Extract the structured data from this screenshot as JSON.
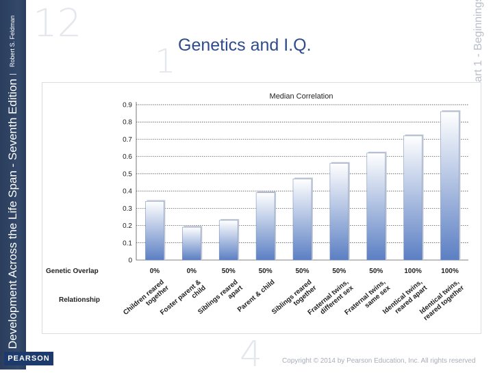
{
  "slide": {
    "title": "Genetics and I.Q.",
    "side_title": "Development Across the Life Span - Seventh Edition",
    "separator": "|",
    "author": "Robert S. Feldman",
    "part_label": "art 1 - Beginnings",
    "publisher": "PEARSON",
    "copyright": "Copyright © 2014 by Pearson Education, Inc. All rights reserved",
    "watermark_numbers": [
      "12",
      "1",
      "4"
    ]
  },
  "chart_data": {
    "type": "bar",
    "title": "Median Correlation",
    "ylim": [
      0,
      0.9
    ],
    "yticks": [
      "0",
      "0.1",
      "0.2",
      "0.3",
      "0.4",
      "0.5",
      "0.6",
      "0.7",
      "0.8",
      "0.9"
    ],
    "row_labels": {
      "overlap": "Genetic Overlap",
      "relationship": "Relationship"
    },
    "categories": [
      {
        "line1": "Children reared",
        "line2": "together",
        "overlap": "0%",
        "value": 0.34
      },
      {
        "line1": "Foster parent &",
        "line2": "child",
        "overlap": "0%",
        "value": 0.19
      },
      {
        "line1": "Siblings reared",
        "line2": "apart",
        "overlap": "50%",
        "value": 0.23
      },
      {
        "line1": "Parent & child",
        "line2": "",
        "overlap": "50%",
        "value": 0.39
      },
      {
        "line1": "Siblings reared",
        "line2": "together",
        "overlap": "50%",
        "value": 0.47
      },
      {
        "line1": "Fraternal twins,",
        "line2": "different sex",
        "overlap": "50%",
        "value": 0.56
      },
      {
        "line1": "Fraternal twins,",
        "line2": "same sex",
        "overlap": "50%",
        "value": 0.62
      },
      {
        "line1": "Identical twins,",
        "line2": "reared apart",
        "overlap": "100%",
        "value": 0.72
      },
      {
        "line1": "Identical twins,",
        "line2": "reared together",
        "overlap": "100%",
        "value": 0.86
      }
    ],
    "colors": {
      "bar_top": "#ffffff",
      "bar_bottom": "#5b7fc3",
      "grid": "#333333"
    }
  }
}
